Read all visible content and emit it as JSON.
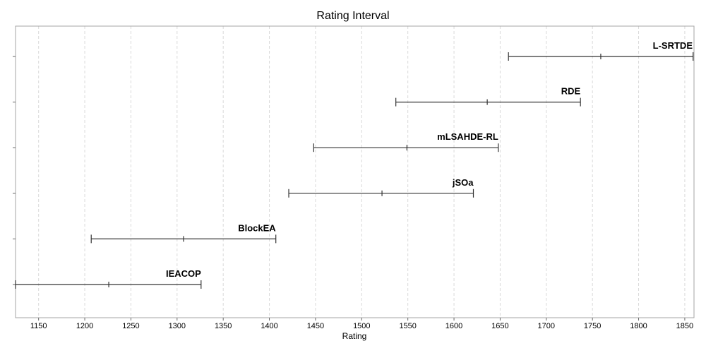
{
  "chart_data": {
    "type": "interval",
    "title": "Rating Interval",
    "xlabel": "Rating",
    "xlim": [
      1125,
      1860
    ],
    "xticks": [
      1150,
      1200,
      1250,
      1300,
      1350,
      1400,
      1450,
      1500,
      1550,
      1600,
      1650,
      1700,
      1750,
      1800,
      1850
    ],
    "grid": true,
    "series": [
      {
        "name": "IEACOP",
        "low": 1125,
        "mid": 1226,
        "high": 1326
      },
      {
        "name": "BlockEA",
        "low": 1207,
        "mid": 1307,
        "high": 1407
      },
      {
        "name": "jSOa",
        "low": 1421,
        "mid": 1522,
        "high": 1621
      },
      {
        "name": "mLSAHDE-RL",
        "low": 1448,
        "mid": 1549,
        "high": 1648
      },
      {
        "name": "RDE",
        "low": 1537,
        "mid": 1636,
        "high": 1737
      },
      {
        "name": "L-SRTDE",
        "low": 1659,
        "mid": 1759,
        "high": 1859
      }
    ]
  }
}
